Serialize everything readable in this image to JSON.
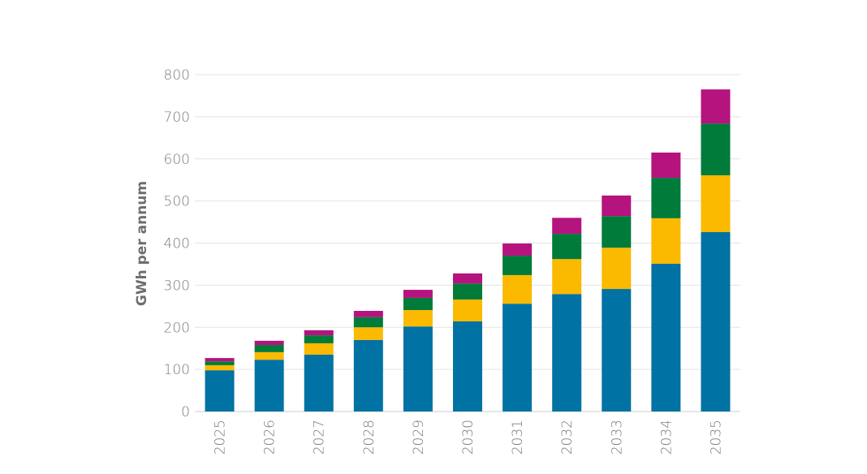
{
  "chart_data": {
    "type": "bar",
    "stacked": true,
    "title": "",
    "xlabel": "",
    "ylabel": "GWh per annum",
    "ylim": [
      0,
      800
    ],
    "yticks": [
      0,
      100,
      200,
      300,
      400,
      500,
      600,
      700,
      800
    ],
    "grid": true,
    "legend": "none",
    "categories": [
      "2025",
      "2026",
      "2027",
      "2028",
      "2029",
      "2030",
      "2031",
      "2032",
      "2033",
      "2034",
      "2035"
    ],
    "series": [
      {
        "color": "#0072a3",
        "values": [
          98,
          123,
          135,
          170,
          202,
          214,
          256,
          279,
          291,
          351,
          426
        ]
      },
      {
        "color": "#fbb900",
        "values": [
          12,
          18,
          27,
          30,
          39,
          52,
          68,
          83,
          98,
          108,
          135
        ]
      },
      {
        "color": "#007b3a",
        "values": [
          9,
          17,
          19,
          24,
          29,
          38,
          46,
          60,
          75,
          96,
          123
        ]
      },
      {
        "color": "#b5137e",
        "values": [
          8,
          10,
          12,
          15,
          19,
          24,
          29,
          38,
          49,
          60,
          81
        ]
      }
    ]
  }
}
